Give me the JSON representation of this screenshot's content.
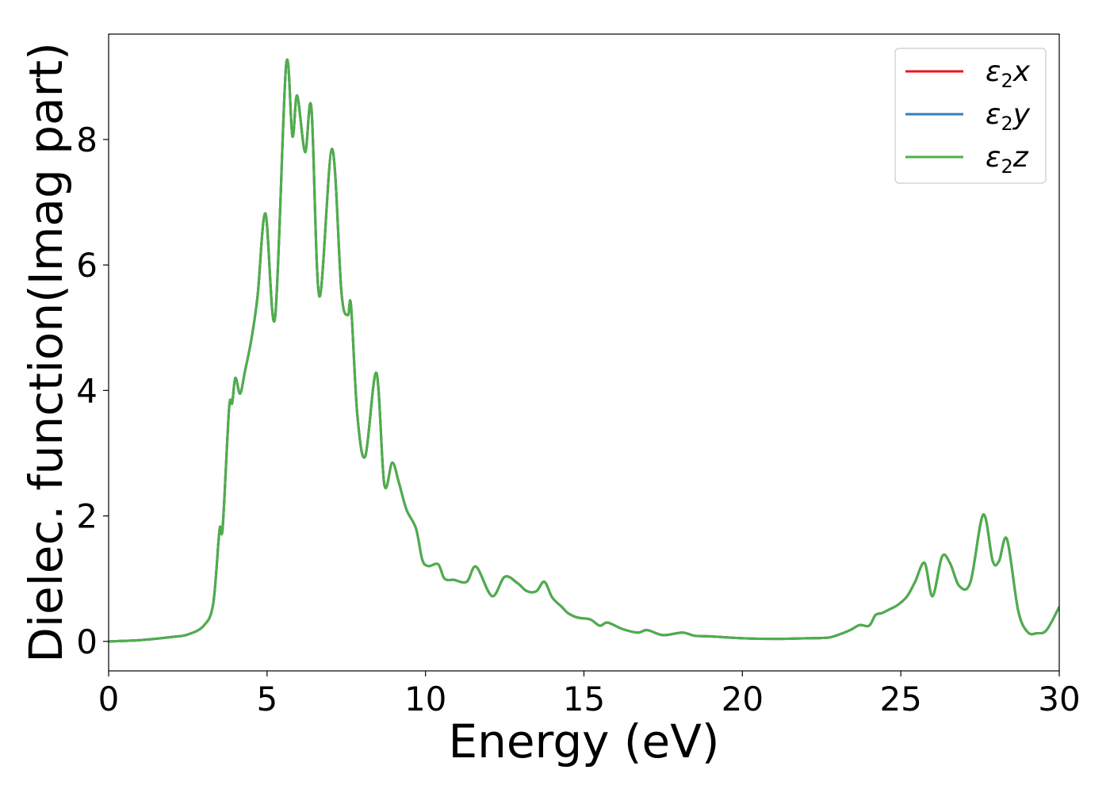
{
  "chart_data": {
    "type": "line",
    "title": "",
    "xlabel": "Energy (eV)",
    "ylabel": "Dielec. function(Imag part)",
    "xlim": [
      0,
      30
    ],
    "ylim": [
      -0.47,
      9.68
    ],
    "xticks": [
      0,
      5,
      10,
      15,
      20,
      25,
      30
    ],
    "xtick_labels": [
      "0",
      "5",
      "10",
      "15",
      "20",
      "25",
      "30"
    ],
    "yticks": [
      0,
      2,
      4,
      6,
      8
    ],
    "ytick_labels": [
      "0",
      "2",
      "4",
      "6",
      "8"
    ],
    "grid": false,
    "legend_position": "top-right",
    "legend": [
      {
        "base": "ε",
        "sub": "2",
        "suffix": "x",
        "color": "#e41a1c"
      },
      {
        "base": "ε",
        "sub": "2",
        "suffix": "y",
        "color": "#377eb8"
      },
      {
        "base": "ε",
        "sub": "2",
        "suffix": "z",
        "color": "#4daf4a"
      }
    ],
    "x": [
      0,
      1,
      2,
      2.5,
      3.0,
      3.3,
      3.5,
      3.6,
      3.8,
      3.9,
      4.0,
      4.15,
      4.3,
      4.5,
      4.7,
      4.95,
      5.25,
      5.6,
      5.8,
      5.95,
      6.2,
      6.4,
      6.65,
      7.05,
      7.35,
      7.55,
      7.65,
      7.85,
      8.1,
      8.45,
      8.7,
      8.95,
      9.15,
      9.4,
      9.7,
      9.9,
      10.1,
      10.4,
      10.6,
      10.9,
      11.3,
      11.6,
      12.1,
      12.5,
      12.9,
      13.2,
      13.5,
      13.75,
      14.0,
      14.3,
      14.5,
      14.8,
      15.2,
      15.5,
      15.75,
      16.2,
      16.7,
      17.0,
      17.5,
      18.1,
      18.5,
      19.0,
      20.0,
      21.0,
      22.0,
      22.7,
      23.0,
      23.4,
      23.7,
      24.0,
      24.2,
      24.4,
      24.6,
      24.9,
      25.2,
      25.45,
      25.75,
      26.0,
      26.3,
      26.55,
      26.85,
      27.2,
      27.6,
      27.9,
      28.1,
      28.35,
      28.7,
      29.0,
      29.3,
      29.6,
      30.0
    ],
    "series": [
      {
        "name": "ε2x",
        "color": "#e41a1c",
        "values": [
          0.0,
          0.02,
          0.07,
          0.11,
          0.25,
          0.6,
          1.78,
          1.82,
          3.7,
          3.8,
          4.2,
          3.95,
          4.3,
          4.8,
          5.5,
          6.82,
          5.15,
          9.18,
          8.05,
          8.7,
          7.8,
          8.5,
          5.5,
          7.85,
          5.55,
          5.2,
          5.35,
          3.6,
          2.95,
          4.28,
          2.5,
          2.85,
          2.55,
          2.1,
          1.8,
          1.3,
          1.2,
          1.23,
          1.0,
          0.98,
          0.95,
          1.19,
          0.72,
          1.03,
          0.93,
          0.8,
          0.8,
          0.95,
          0.7,
          0.55,
          0.45,
          0.38,
          0.35,
          0.25,
          0.3,
          0.2,
          0.14,
          0.18,
          0.1,
          0.14,
          0.09,
          0.08,
          0.05,
          0.04,
          0.05,
          0.06,
          0.1,
          0.18,
          0.26,
          0.25,
          0.42,
          0.45,
          0.5,
          0.58,
          0.72,
          0.95,
          1.25,
          0.72,
          1.35,
          1.25,
          0.88,
          0.95,
          2.02,
          1.28,
          1.28,
          1.63,
          0.5,
          0.15,
          0.13,
          0.18,
          0.55
        ]
      },
      {
        "name": "ε2y",
        "color": "#377eb8",
        "values": [
          0.0,
          0.02,
          0.07,
          0.11,
          0.25,
          0.6,
          1.78,
          1.82,
          3.7,
          3.8,
          4.2,
          3.95,
          4.3,
          4.8,
          5.5,
          6.82,
          5.15,
          9.18,
          8.05,
          8.7,
          7.8,
          8.5,
          5.5,
          7.85,
          5.55,
          5.2,
          5.35,
          3.6,
          2.95,
          4.28,
          2.5,
          2.85,
          2.55,
          2.1,
          1.8,
          1.3,
          1.2,
          1.23,
          1.0,
          0.98,
          0.95,
          1.19,
          0.72,
          1.03,
          0.93,
          0.8,
          0.8,
          0.95,
          0.7,
          0.55,
          0.45,
          0.38,
          0.35,
          0.25,
          0.3,
          0.2,
          0.14,
          0.18,
          0.1,
          0.14,
          0.09,
          0.08,
          0.05,
          0.04,
          0.05,
          0.06,
          0.1,
          0.18,
          0.26,
          0.25,
          0.42,
          0.45,
          0.5,
          0.58,
          0.72,
          0.95,
          1.25,
          0.72,
          1.35,
          1.25,
          0.88,
          0.95,
          2.02,
          1.28,
          1.28,
          1.63,
          0.5,
          0.15,
          0.13,
          0.18,
          0.55
        ]
      },
      {
        "name": "ε2z",
        "color": "#4daf4a",
        "values": [
          0.0,
          0.02,
          0.07,
          0.11,
          0.25,
          0.6,
          1.78,
          1.82,
          3.7,
          3.8,
          4.2,
          3.95,
          4.3,
          4.8,
          5.5,
          6.82,
          5.15,
          9.18,
          8.05,
          8.7,
          7.8,
          8.5,
          5.5,
          7.85,
          5.55,
          5.2,
          5.35,
          3.6,
          2.95,
          4.28,
          2.5,
          2.85,
          2.55,
          2.1,
          1.8,
          1.3,
          1.2,
          1.23,
          1.0,
          0.98,
          0.95,
          1.19,
          0.72,
          1.03,
          0.93,
          0.8,
          0.8,
          0.95,
          0.7,
          0.55,
          0.45,
          0.38,
          0.35,
          0.25,
          0.3,
          0.2,
          0.14,
          0.18,
          0.1,
          0.14,
          0.09,
          0.08,
          0.05,
          0.04,
          0.05,
          0.06,
          0.1,
          0.18,
          0.26,
          0.25,
          0.42,
          0.45,
          0.5,
          0.58,
          0.72,
          0.95,
          1.25,
          0.72,
          1.35,
          1.25,
          0.88,
          0.95,
          2.02,
          1.28,
          1.28,
          1.63,
          0.5,
          0.15,
          0.13,
          0.18,
          0.55
        ]
      }
    ]
  }
}
